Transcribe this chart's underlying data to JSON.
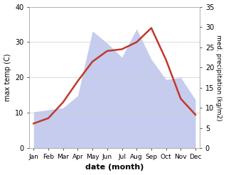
{
  "months": [
    "Jan",
    "Feb",
    "Mar",
    "Apr",
    "May",
    "Jun",
    "Jul",
    "Aug",
    "Sep",
    "Oct",
    "Nov",
    "Dec"
  ],
  "temperature": [
    7.0,
    8.5,
    13.0,
    19.0,
    24.5,
    27.5,
    28.0,
    30.0,
    34.0,
    25.0,
    14.0,
    9.5
  ],
  "precipitation": [
    9.0,
    9.5,
    10.0,
    13.0,
    29.0,
    26.0,
    22.5,
    29.5,
    22.0,
    17.0,
    17.5,
    12.0
  ],
  "temp_color": "#c0392b",
  "precip_fill_color": "#c5ccee",
  "temp_ylim": [
    0,
    40
  ],
  "precip_ylim": [
    0,
    35
  ],
  "temp_yticks": [
    0,
    10,
    20,
    30,
    40
  ],
  "precip_yticks": [
    0,
    5,
    10,
    15,
    20,
    25,
    30,
    35
  ],
  "xlabel": "date (month)",
  "ylabel_left": "max temp (C)",
  "ylabel_right": "med. precipitation (kg/m2)",
  "bg_color": "#ffffff",
  "linewidth": 1.8,
  "figsize": [
    3.18,
    2.47
  ],
  "dpi": 100
}
